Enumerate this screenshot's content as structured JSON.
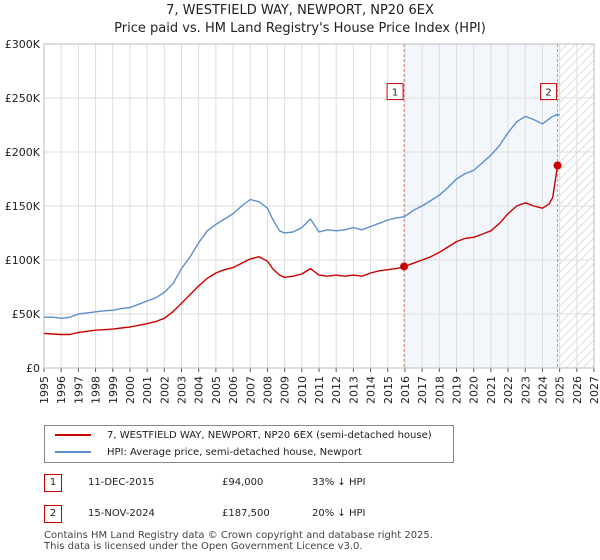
{
  "title": {
    "line1": "7, WESTFIELD WAY, NEWPORT, NP20 6EX",
    "line2": "Price paid vs. HM Land Registry's House Price Index (HPI)"
  },
  "legend": {
    "property_label": "7, WESTFIELD WAY, NEWPORT, NP20 6EX (semi-detached house)",
    "hpi_label": "HPI: Average price, semi-detached house, Newport"
  },
  "transactions": [
    {
      "badge": "1",
      "date": "11-DEC-2015",
      "price": "£94,000",
      "hpi": "33% ↓ HPI"
    },
    {
      "badge": "2",
      "date": "15-NOV-2024",
      "price": "£187,500",
      "hpi": "20% ↓ HPI"
    }
  ],
  "footer": {
    "line1": "Contains HM Land Registry data © Crown copyright and database right 2025.",
    "line2": "This data is licensed under the Open Government Licence v3.0."
  },
  "colors": {
    "property": "#cc0000",
    "hpi": "#5b8fd0",
    "grid": "#dddddd",
    "vline": "#e08080",
    "shade": "#dde6f4"
  },
  "chart_data": {
    "type": "line",
    "title": "7, WESTFIELD WAY, NEWPORT, NP20 6EX — Price paid vs. HM Land Registry's House Price Index (HPI)",
    "xlim": [
      1995,
      2027
    ],
    "ylim": [
      0,
      300000
    ],
    "xticks": [
      1995,
      1996,
      1997,
      1998,
      1999,
      2000,
      2001,
      2002,
      2003,
      2004,
      2005,
      2006,
      2007,
      2008,
      2009,
      2010,
      2011,
      2012,
      2013,
      2014,
      2015,
      2016,
      2017,
      2018,
      2019,
      2020,
      2021,
      2022,
      2023,
      2024,
      2025,
      2026,
      2027
    ],
    "yticks": [
      {
        "value": 0,
        "label": "£0"
      },
      {
        "value": 50000,
        "label": "£50K"
      },
      {
        "value": 100000,
        "label": "£100K"
      },
      {
        "value": 150000,
        "label": "£150K"
      },
      {
        "value": 200000,
        "label": "£200K"
      },
      {
        "value": 250000,
        "label": "£250K"
      },
      {
        "value": 300000,
        "label": "£300K"
      }
    ],
    "hatched_from": 2025.0,
    "shaded_between": [
      2015.95,
      2024.88
    ],
    "series": [
      {
        "name": "7, WESTFIELD WAY, NEWPORT, NP20 6EX (semi-detached house)",
        "color_key": "property",
        "points": [
          [
            1995,
            32000
          ],
          [
            1995.5,
            31500
          ],
          [
            1996,
            31000
          ],
          [
            1996.5,
            31000
          ],
          [
            1997,
            33000
          ],
          [
            1997.5,
            34000
          ],
          [
            1998,
            35000
          ],
          [
            1998.5,
            35500
          ],
          [
            1999,
            36000
          ],
          [
            1999.5,
            37000
          ],
          [
            2000,
            38000
          ],
          [
            2000.5,
            39500
          ],
          [
            2001,
            41000
          ],
          [
            2001.5,
            43000
          ],
          [
            2002,
            46000
          ],
          [
            2002.5,
            52000
          ],
          [
            2003,
            60000
          ],
          [
            2003.5,
            68000
          ],
          [
            2004,
            76000
          ],
          [
            2004.5,
            83000
          ],
          [
            2005,
            88000
          ],
          [
            2005.5,
            91000
          ],
          [
            2006,
            93000
          ],
          [
            2006.5,
            97000
          ],
          [
            2007,
            101000
          ],
          [
            2007.5,
            103000
          ],
          [
            2008,
            99000
          ],
          [
            2008.3,
            92000
          ],
          [
            2008.7,
            86000
          ],
          [
            2009,
            84000
          ],
          [
            2009.5,
            85000
          ],
          [
            2010,
            87000
          ],
          [
            2010.5,
            92000
          ],
          [
            2011,
            86000
          ],
          [
            2011.5,
            85000
          ],
          [
            2012,
            86000
          ],
          [
            2012.5,
            85000
          ],
          [
            2013,
            86000
          ],
          [
            2013.5,
            85000
          ],
          [
            2014,
            88000
          ],
          [
            2014.5,
            90000
          ],
          [
            2015,
            91000
          ],
          [
            2015.5,
            92000
          ],
          [
            2015.95,
            94000
          ],
          [
            2016.5,
            97000
          ],
          [
            2017,
            100000
          ],
          [
            2017.5,
            103000
          ],
          [
            2018,
            107000
          ],
          [
            2018.5,
            112000
          ],
          [
            2019,
            117000
          ],
          [
            2019.5,
            120000
          ],
          [
            2020,
            121000
          ],
          [
            2020.5,
            124000
          ],
          [
            2021,
            127000
          ],
          [
            2021.5,
            134000
          ],
          [
            2022,
            143000
          ],
          [
            2022.5,
            150000
          ],
          [
            2023,
            153000
          ],
          [
            2023.5,
            150000
          ],
          [
            2024,
            148000
          ],
          [
            2024.4,
            152000
          ],
          [
            2024.6,
            158000
          ],
          [
            2024.88,
            187500
          ],
          [
            2025.0,
            185000
          ]
        ]
      },
      {
        "name": "HPI: Average price, semi-detached house, Newport",
        "color_key": "hpi",
        "points": [
          [
            1995,
            47000
          ],
          [
            1995.5,
            47000
          ],
          [
            1996,
            46000
          ],
          [
            1996.5,
            47000
          ],
          [
            1997,
            50000
          ],
          [
            1997.5,
            51000
          ],
          [
            1998,
            52000
          ],
          [
            1998.5,
            53000
          ],
          [
            1999,
            53500
          ],
          [
            1999.5,
            55000
          ],
          [
            2000,
            56000
          ],
          [
            2000.5,
            59000
          ],
          [
            2001,
            62000
          ],
          [
            2001.5,
            65000
          ],
          [
            2002,
            70000
          ],
          [
            2002.5,
            78000
          ],
          [
            2003,
            92000
          ],
          [
            2003.5,
            103000
          ],
          [
            2004,
            116000
          ],
          [
            2004.5,
            127000
          ],
          [
            2005,
            133000
          ],
          [
            2005.5,
            138000
          ],
          [
            2006,
            143000
          ],
          [
            2006.5,
            150000
          ],
          [
            2007,
            156000
          ],
          [
            2007.5,
            154000
          ],
          [
            2008,
            148000
          ],
          [
            2008.3,
            138000
          ],
          [
            2008.7,
            127000
          ],
          [
            2009,
            125000
          ],
          [
            2009.5,
            126000
          ],
          [
            2010,
            130000
          ],
          [
            2010.5,
            138000
          ],
          [
            2011,
            126000
          ],
          [
            2011.5,
            128000
          ],
          [
            2012,
            127000
          ],
          [
            2012.5,
            128000
          ],
          [
            2013,
            130000
          ],
          [
            2013.5,
            128000
          ],
          [
            2014,
            131000
          ],
          [
            2014.5,
            134000
          ],
          [
            2015,
            137000
          ],
          [
            2015.5,
            139000
          ],
          [
            2015.95,
            140000
          ],
          [
            2016.5,
            146000
          ],
          [
            2017,
            150000
          ],
          [
            2017.5,
            155000
          ],
          [
            2018,
            160000
          ],
          [
            2018.5,
            167000
          ],
          [
            2019,
            175000
          ],
          [
            2019.5,
            180000
          ],
          [
            2020,
            183000
          ],
          [
            2020.5,
            190000
          ],
          [
            2021,
            197000
          ],
          [
            2021.5,
            206000
          ],
          [
            2022,
            218000
          ],
          [
            2022.5,
            228000
          ],
          [
            2023,
            233000
          ],
          [
            2023.5,
            230000
          ],
          [
            2024,
            226000
          ],
          [
            2024.5,
            232000
          ],
          [
            2024.88,
            235000
          ],
          [
            2025.0,
            234000
          ]
        ]
      }
    ],
    "markers": [
      {
        "label": "1",
        "x": 2015.95,
        "y": 94000,
        "box_y": 255000
      },
      {
        "label": "2",
        "x": 2024.88,
        "y": 187500,
        "box_y": 255000
      }
    ]
  }
}
